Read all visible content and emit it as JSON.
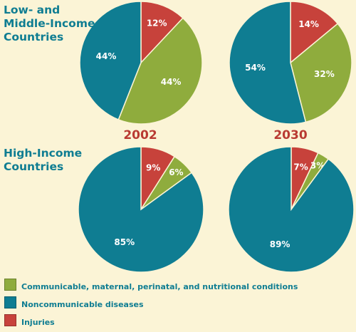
{
  "rows": [
    {
      "label_line1": "Low- and",
      "label_line2": "Middle-Income",
      "label_line3": "Countries"
    },
    {
      "label_line1": "High-Income",
      "label_line2": "Countries"
    }
  ],
  "years": [
    "2002",
    "2030"
  ],
  "colors": {
    "communicable": "#8fac3d",
    "noncommunicable": "#0f7d92",
    "injuries": "#c7423b",
    "background": "#fbf4d6",
    "year_text": "#b93a32",
    "label_text": "#0f7d92"
  },
  "legend": [
    {
      "key": "communicable",
      "label": "Communicable, maternal, perinatal, and nutritional conditions",
      "icon": "green-square"
    },
    {
      "key": "noncommunicable",
      "label": "Noncommunicable diseases",
      "icon": "teal-square"
    },
    {
      "key": "injuries",
      "label": "Injuries",
      "icon": "red-square"
    }
  ],
  "chart_data": [
    {
      "type": "pie",
      "group": "Low- and Middle-Income Countries",
      "year": "2002",
      "slices": [
        {
          "category": "Injuries",
          "key": "injuries",
          "value": 12,
          "label": "12%"
        },
        {
          "category": "Communicable, maternal, perinatal, and nutritional conditions",
          "key": "communicable",
          "value": 44,
          "label": "44%"
        },
        {
          "category": "Noncommunicable diseases",
          "key": "noncommunicable",
          "value": 44,
          "label": "44%"
        }
      ]
    },
    {
      "type": "pie",
      "group": "Low- and Middle-Income Countries",
      "year": "2030",
      "slices": [
        {
          "category": "Injuries",
          "key": "injuries",
          "value": 14,
          "label": "14%"
        },
        {
          "category": "Communicable, maternal, perinatal, and nutritional conditions",
          "key": "communicable",
          "value": 32,
          "label": "32%"
        },
        {
          "category": "Noncommunicable diseases",
          "key": "noncommunicable",
          "value": 54,
          "label": "54%"
        }
      ]
    },
    {
      "type": "pie",
      "group": "High-Income Countries",
      "year": "2002",
      "slices": [
        {
          "category": "Injuries",
          "key": "injuries",
          "value": 9,
          "label": "9%"
        },
        {
          "category": "Communicable, maternal, perinatal, and nutritional conditions",
          "key": "communicable",
          "value": 6,
          "label": "6%"
        },
        {
          "category": "Noncommunicable diseases",
          "key": "noncommunicable",
          "value": 85,
          "label": "85%"
        }
      ]
    },
    {
      "type": "pie",
      "group": "High-Income Countries",
      "year": "2030",
      "slices": [
        {
          "category": "Injuries",
          "key": "injuries",
          "value": 7,
          "label": "7%"
        },
        {
          "category": "Communicable, maternal, perinatal, and nutritional conditions",
          "key": "communicable",
          "value": 3,
          "label": "3%"
        },
        {
          "category": "Noncommunicable diseases",
          "key": "noncommunicable",
          "value": 89,
          "label": "89%"
        }
      ]
    }
  ]
}
